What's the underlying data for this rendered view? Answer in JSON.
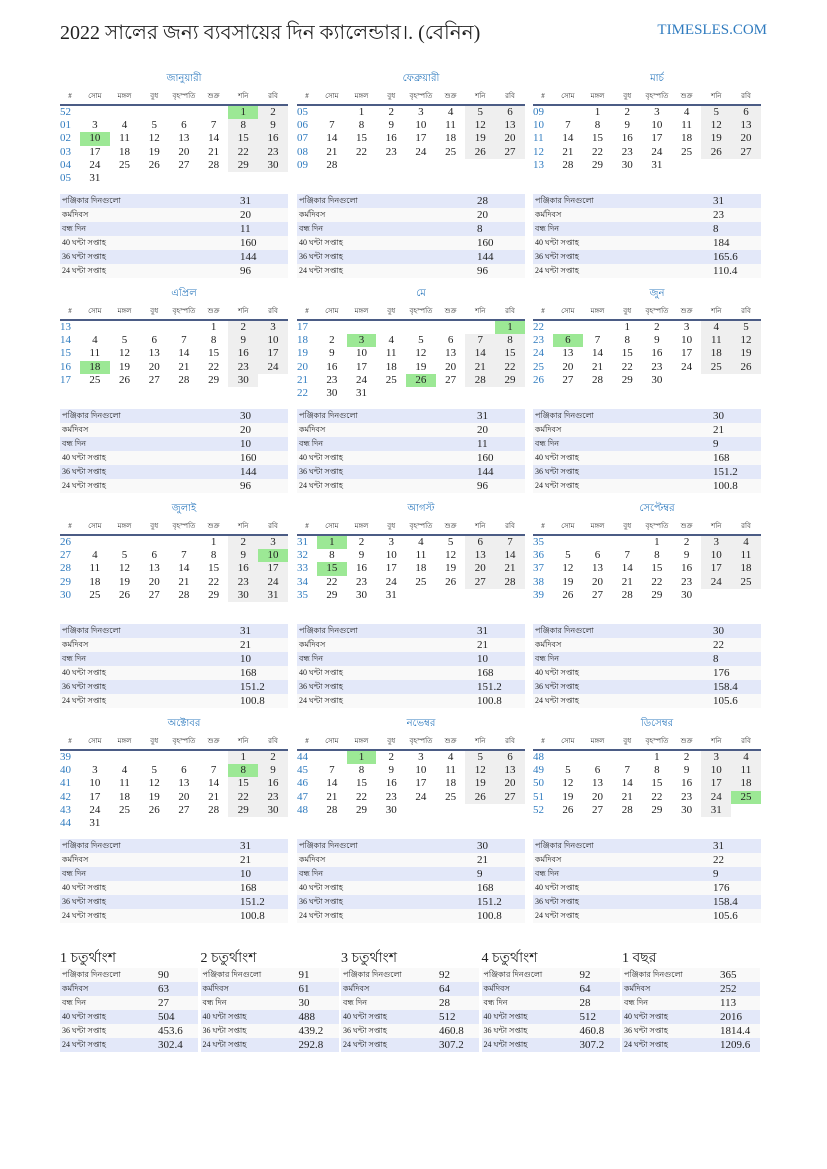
{
  "header": {
    "title": "2022 সালের জন্য ব্যবসায়ের দিন ক্যালেন্ডার।. (বেনিন)",
    "brand": "TIMESLES.COM"
  },
  "colors": {
    "accent": "#2f7bbf",
    "holiday": "#9ce895",
    "weekend": "#efefef",
    "rule": "#4b5c85"
  },
  "day_headers": [
    "#",
    "সোম",
    "মঙ্গল",
    "বুধ",
    "বৃহস্পতি",
    "শুক্র",
    "শনি",
    "রবি"
  ],
  "stat_labels": [
    "পঞ্জিকার দিনগুলো",
    "কর্মদিবস",
    "বন্ধ দিন",
    "40 ঘন্টা সপ্তাহ",
    "36 ঘন্টা সপ্তাহ",
    "24 ঘন্টা সপ্তাহ"
  ],
  "months": [
    {
      "name": "জানুয়ারী",
      "holidays": [
        "1",
        "10"
      ],
      "weeks": [
        [
          "52",
          "",
          "",
          "",
          "",
          "",
          "1",
          "2"
        ],
        [
          "01",
          "3",
          "4",
          "5",
          "6",
          "7",
          "8",
          "9"
        ],
        [
          "02",
          "10",
          "11",
          "12",
          "13",
          "14",
          "15",
          "16"
        ],
        [
          "03",
          "17",
          "18",
          "19",
          "20",
          "21",
          "22",
          "23"
        ],
        [
          "04",
          "24",
          "25",
          "26",
          "27",
          "28",
          "29",
          "30"
        ],
        [
          "05",
          "31",
          "",
          "",
          "",
          "",
          "",
          ""
        ]
      ],
      "stats": [
        "31",
        "20",
        "11",
        "160",
        "144",
        "96"
      ]
    },
    {
      "name": "ফেব্রুয়ারী",
      "holidays": [],
      "weeks": [
        [
          "05",
          "",
          "1",
          "2",
          "3",
          "4",
          "5",
          "6"
        ],
        [
          "06",
          "7",
          "8",
          "9",
          "10",
          "11",
          "12",
          "13"
        ],
        [
          "07",
          "14",
          "15",
          "16",
          "17",
          "18",
          "19",
          "20"
        ],
        [
          "08",
          "21",
          "22",
          "23",
          "24",
          "25",
          "26",
          "27"
        ],
        [
          "09",
          "28",
          "",
          "",
          "",
          "",
          "",
          ""
        ]
      ],
      "stats": [
        "28",
        "20",
        "8",
        "160",
        "144",
        "96"
      ]
    },
    {
      "name": "মার্চ",
      "holidays": [],
      "weeks": [
        [
          "09",
          "",
          "1",
          "2",
          "3",
          "4",
          "5",
          "6"
        ],
        [
          "10",
          "7",
          "8",
          "9",
          "10",
          "11",
          "12",
          "13"
        ],
        [
          "11",
          "14",
          "15",
          "16",
          "17",
          "18",
          "19",
          "20"
        ],
        [
          "12",
          "21",
          "22",
          "23",
          "24",
          "25",
          "26",
          "27"
        ],
        [
          "13",
          "28",
          "29",
          "30",
          "31",
          "",
          "",
          ""
        ]
      ],
      "stats": [
        "31",
        "23",
        "8",
        "184",
        "165.6",
        "110.4"
      ]
    },
    {
      "name": "এপ্রিল",
      "holidays": [
        "18"
      ],
      "weeks": [
        [
          "13",
          "",
          "",
          "",
          "",
          "1",
          "2",
          "3"
        ],
        [
          "14",
          "4",
          "5",
          "6",
          "7",
          "8",
          "9",
          "10"
        ],
        [
          "15",
          "11",
          "12",
          "13",
          "14",
          "15",
          "16",
          "17"
        ],
        [
          "16",
          "18",
          "19",
          "20",
          "21",
          "22",
          "23",
          "24"
        ],
        [
          "17",
          "25",
          "26",
          "27",
          "28",
          "29",
          "30",
          ""
        ]
      ],
      "stats": [
        "30",
        "20",
        "10",
        "160",
        "144",
        "96"
      ]
    },
    {
      "name": "মে",
      "holidays": [
        "1",
        "3",
        "26"
      ],
      "weeks": [
        [
          "17",
          "",
          "",
          "",
          "",
          "",
          "",
          "1"
        ],
        [
          "18",
          "2",
          "3",
          "4",
          "5",
          "6",
          "7",
          "8"
        ],
        [
          "19",
          "9",
          "10",
          "11",
          "12",
          "13",
          "14",
          "15"
        ],
        [
          "20",
          "16",
          "17",
          "18",
          "19",
          "20",
          "21",
          "22"
        ],
        [
          "21",
          "23",
          "24",
          "25",
          "26",
          "27",
          "28",
          "29"
        ],
        [
          "22",
          "30",
          "31",
          "",
          "",
          "",
          "",
          ""
        ]
      ],
      "stats": [
        "31",
        "20",
        "11",
        "160",
        "144",
        "96"
      ]
    },
    {
      "name": "জুন",
      "holidays": [
        "6"
      ],
      "weeks": [
        [
          "22",
          "",
          "",
          "1",
          "2",
          "3",
          "4",
          "5"
        ],
        [
          "23",
          "6",
          "7",
          "8",
          "9",
          "10",
          "11",
          "12"
        ],
        [
          "24",
          "13",
          "14",
          "15",
          "16",
          "17",
          "18",
          "19"
        ],
        [
          "25",
          "20",
          "21",
          "22",
          "23",
          "24",
          "25",
          "26"
        ],
        [
          "26",
          "27",
          "28",
          "29",
          "30",
          "",
          "",
          ""
        ]
      ],
      "stats": [
        "30",
        "21",
        "9",
        "168",
        "151.2",
        "100.8"
      ]
    },
    {
      "name": "জুলাই",
      "holidays": [
        "10"
      ],
      "weeks": [
        [
          "26",
          "",
          "",
          "",
          "",
          "1",
          "2",
          "3"
        ],
        [
          "27",
          "4",
          "5",
          "6",
          "7",
          "8",
          "9",
          "10"
        ],
        [
          "28",
          "11",
          "12",
          "13",
          "14",
          "15",
          "16",
          "17"
        ],
        [
          "29",
          "18",
          "19",
          "20",
          "21",
          "22",
          "23",
          "24"
        ],
        [
          "30",
          "25",
          "26",
          "27",
          "28",
          "29",
          "30",
          "31"
        ]
      ],
      "stats": [
        "31",
        "21",
        "10",
        "168",
        "151.2",
        "100.8"
      ]
    },
    {
      "name": "আগস্ট",
      "holidays": [
        "1",
        "15"
      ],
      "weeks": [
        [
          "31",
          "1",
          "2",
          "3",
          "4",
          "5",
          "6",
          "7"
        ],
        [
          "32",
          "8",
          "9",
          "10",
          "11",
          "12",
          "13",
          "14"
        ],
        [
          "33",
          "15",
          "16",
          "17",
          "18",
          "19",
          "20",
          "21"
        ],
        [
          "34",
          "22",
          "23",
          "24",
          "25",
          "26",
          "27",
          "28"
        ],
        [
          "35",
          "29",
          "30",
          "31",
          "",
          "",
          "",
          ""
        ]
      ],
      "stats": [
        "31",
        "21",
        "10",
        "168",
        "151.2",
        "100.8"
      ]
    },
    {
      "name": "সেপ্টেম্বর",
      "holidays": [],
      "weeks": [
        [
          "35",
          "",
          "",
          "",
          "1",
          "2",
          "3",
          "4"
        ],
        [
          "36",
          "5",
          "6",
          "7",
          "8",
          "9",
          "10",
          "11"
        ],
        [
          "37",
          "12",
          "13",
          "14",
          "15",
          "16",
          "17",
          "18"
        ],
        [
          "38",
          "19",
          "20",
          "21",
          "22",
          "23",
          "24",
          "25"
        ],
        [
          "39",
          "26",
          "27",
          "28",
          "29",
          "30",
          "",
          ""
        ]
      ],
      "stats": [
        "30",
        "22",
        "8",
        "176",
        "158.4",
        "105.6"
      ]
    },
    {
      "name": "অক্টোবর",
      "holidays": [
        "8"
      ],
      "weeks": [
        [
          "39",
          "",
          "",
          "",
          "",
          "",
          "1",
          "2"
        ],
        [
          "40",
          "3",
          "4",
          "5",
          "6",
          "7",
          "8",
          "9"
        ],
        [
          "41",
          "10",
          "11",
          "12",
          "13",
          "14",
          "15",
          "16"
        ],
        [
          "42",
          "17",
          "18",
          "19",
          "20",
          "21",
          "22",
          "23"
        ],
        [
          "43",
          "24",
          "25",
          "26",
          "27",
          "28",
          "29",
          "30"
        ],
        [
          "44",
          "31",
          "",
          "",
          "",
          "",
          "",
          ""
        ]
      ],
      "stats": [
        "31",
        "21",
        "10",
        "168",
        "151.2",
        "100.8"
      ]
    },
    {
      "name": "নভেম্বর",
      "holidays": [
        "1"
      ],
      "weeks": [
        [
          "44",
          "",
          "1",
          "2",
          "3",
          "4",
          "5",
          "6"
        ],
        [
          "45",
          "7",
          "8",
          "9",
          "10",
          "11",
          "12",
          "13"
        ],
        [
          "46",
          "14",
          "15",
          "16",
          "17",
          "18",
          "19",
          "20"
        ],
        [
          "47",
          "21",
          "22",
          "23",
          "24",
          "25",
          "26",
          "27"
        ],
        [
          "48",
          "28",
          "29",
          "30",
          "",
          "",
          "",
          ""
        ]
      ],
      "stats": [
        "30",
        "21",
        "9",
        "168",
        "151.2",
        "100.8"
      ]
    },
    {
      "name": "ডিসেম্বর",
      "holidays": [
        "25"
      ],
      "weeks": [
        [
          "48",
          "",
          "",
          "",
          "1",
          "2",
          "3",
          "4"
        ],
        [
          "49",
          "5",
          "6",
          "7",
          "8",
          "9",
          "10",
          "11"
        ],
        [
          "50",
          "12",
          "13",
          "14",
          "15",
          "16",
          "17",
          "18"
        ],
        [
          "51",
          "19",
          "20",
          "21",
          "22",
          "23",
          "24",
          "25"
        ],
        [
          "52",
          "26",
          "27",
          "28",
          "29",
          "30",
          "31",
          ""
        ]
      ],
      "stats": [
        "31",
        "22",
        "9",
        "176",
        "158.4",
        "105.6"
      ]
    }
  ],
  "summaries": [
    {
      "title": "1 চতুর্থাংশ",
      "stats": [
        "90",
        "63",
        "27",
        "504",
        "453.6",
        "302.4"
      ]
    },
    {
      "title": "2 চতুর্থাংশ",
      "stats": [
        "91",
        "61",
        "30",
        "488",
        "439.2",
        "292.8"
      ]
    },
    {
      "title": "3 চতুর্থাংশ",
      "stats": [
        "92",
        "64",
        "28",
        "512",
        "460.8",
        "307.2"
      ]
    },
    {
      "title": "4 চতুর্থাংশ",
      "stats": [
        "92",
        "64",
        "28",
        "512",
        "460.8",
        "307.2"
      ]
    },
    {
      "title": "1 বছর",
      "stats": [
        "365",
        "252",
        "113",
        "2016",
        "1814.4",
        "1209.6"
      ]
    }
  ]
}
